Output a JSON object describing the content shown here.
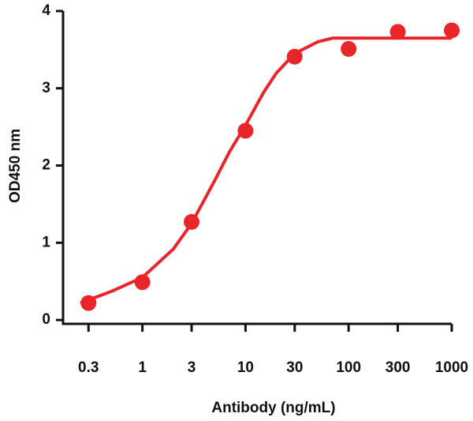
{
  "chart_data": {
    "type": "scatter",
    "xlabel": "Antibody (ng/mL)",
    "ylabel": "OD450 nm",
    "xscale": "log",
    "xlim": [
      0.17,
      1000
    ],
    "ylim": [
      -0.05,
      4
    ],
    "xticks": [
      0.3,
      1,
      3,
      10,
      30,
      100,
      300,
      1000
    ],
    "yticks": [
      0,
      1,
      2,
      3,
      4
    ],
    "color": "#e8262a",
    "points": {
      "x": [
        0.3,
        1,
        3,
        10,
        30,
        100,
        300,
        1000
      ],
      "y": [
        0.22,
        0.49,
        1.27,
        2.45,
        3.41,
        3.51,
        3.73,
        3.75
      ]
    },
    "curve": {
      "x": [
        0.25,
        0.3,
        0.5,
        1,
        2,
        3,
        5,
        7,
        10,
        15,
        20,
        30,
        50,
        70,
        100,
        200,
        300,
        500,
        1000
      ],
      "y": [
        0.22,
        0.26,
        0.37,
        0.55,
        0.92,
        1.25,
        1.8,
        2.18,
        2.52,
        2.95,
        3.2,
        3.45,
        3.6,
        3.65,
        3.65,
        3.65,
        3.65,
        3.65,
        3.65
      ]
    }
  }
}
